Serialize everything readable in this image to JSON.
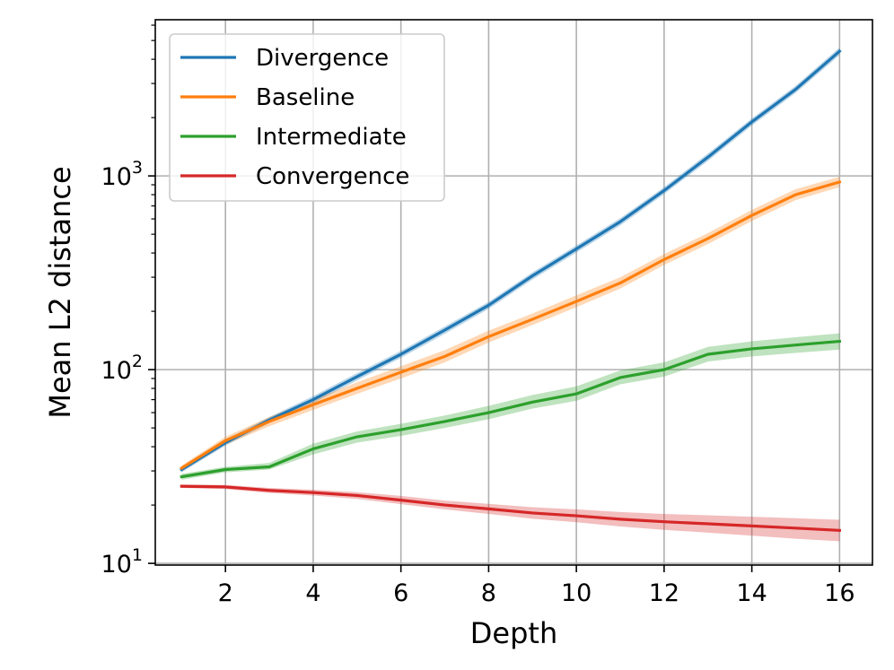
{
  "chart_data": {
    "type": "line",
    "title": "",
    "xlabel": "Depth",
    "ylabel": "Mean L2 distance",
    "yscale": "log",
    "xlim": [
      0.4,
      16.75
    ],
    "ylim": [
      9.8,
      6400
    ],
    "x": [
      1,
      2,
      3,
      4,
      5,
      6,
      7,
      8,
      9,
      10,
      11,
      12,
      13,
      14,
      15,
      16
    ],
    "xticks": [
      2,
      4,
      6,
      8,
      10,
      12,
      14,
      16
    ],
    "xtick_labels": [
      "2",
      "4",
      "6",
      "8",
      "10",
      "12",
      "14",
      "16"
    ],
    "yticks": [
      {
        "value": 10,
        "base": "10",
        "exp": "1"
      },
      {
        "value": 100,
        "base": "10",
        "exp": "2"
      },
      {
        "value": 1000,
        "base": "10",
        "exp": "3"
      }
    ],
    "grid": true,
    "legend_position": "top-left",
    "series": [
      {
        "name": "Divergence",
        "color": "#1f77b4",
        "values": [
          30.5,
          42,
          55,
          70,
          92,
          120,
          160,
          215,
          305,
          420,
          580,
          840,
          1250,
          1900,
          2800,
          4400
        ],
        "band": [
          [
            29.5,
            31.5
          ],
          [
            40.5,
            43.5
          ],
          [
            53,
            57
          ],
          [
            67,
            73
          ],
          [
            88,
            96
          ],
          [
            115,
            125
          ],
          [
            153,
            167
          ],
          [
            206,
            224
          ],
          [
            292,
            318
          ],
          [
            402,
            438
          ],
          [
            555,
            605
          ],
          [
            805,
            875
          ],
          [
            1195,
            1305
          ],
          [
            1820,
            1980
          ],
          [
            2680,
            2920
          ],
          [
            4200,
            4600
          ]
        ]
      },
      {
        "name": "Baseline",
        "color": "#ff7f0e",
        "values": [
          31,
          43,
          54,
          66,
          80,
          97,
          117,
          148,
          182,
          225,
          280,
          370,
          475,
          625,
          800,
          930
        ],
        "band": [
          [
            30,
            32
          ],
          [
            41,
            45
          ],
          [
            51,
            57
          ],
          [
            62,
            70
          ],
          [
            75,
            86
          ],
          [
            90,
            104
          ],
          [
            109,
            126
          ],
          [
            138,
            159
          ],
          [
            170,
            195
          ],
          [
            210,
            242
          ],
          [
            262,
            300
          ],
          [
            347,
            395
          ],
          [
            445,
            507
          ],
          [
            585,
            668
          ],
          [
            750,
            855
          ],
          [
            875,
            990
          ]
        ]
      },
      {
        "name": "Intermediate",
        "color": "#2ca02c",
        "values": [
          28,
          30.5,
          31.5,
          39,
          45,
          49,
          54,
          60,
          68,
          75,
          91,
          100,
          120,
          128,
          134,
          140
        ],
        "band": [
          [
            27,
            29
          ],
          [
            29.5,
            31.5
          ],
          [
            30.5,
            33
          ],
          [
            36.5,
            41.5
          ],
          [
            42,
            48
          ],
          [
            45.5,
            52.5
          ],
          [
            50,
            58
          ],
          [
            55.5,
            65
          ],
          [
            63,
            74
          ],
          [
            69,
            82
          ],
          [
            84,
            99
          ],
          [
            92,
            109
          ],
          [
            110,
            131
          ],
          [
            117,
            140
          ],
          [
            122,
            147
          ],
          [
            127,
            154
          ]
        ]
      },
      {
        "name": "Convergence",
        "color": "#d62728",
        "values": [
          25,
          24.8,
          23.8,
          23.2,
          22.4,
          21.2,
          20,
          19.1,
          18.2,
          17.6,
          16.9,
          16.4,
          16,
          15.6,
          15.2,
          14.8
        ],
        "band": [
          [
            24.5,
            25.5
          ],
          [
            24.2,
            25.4
          ],
          [
            23.1,
            24.5
          ],
          [
            22.4,
            24
          ],
          [
            21.5,
            23.3
          ],
          [
            20.2,
            22.3
          ],
          [
            19,
            21.1
          ],
          [
            18,
            20.3
          ],
          [
            17,
            19.5
          ],
          [
            16.3,
            19
          ],
          [
            15.5,
            18.4
          ],
          [
            14.9,
            18
          ],
          [
            14.4,
            17.7
          ],
          [
            13.9,
            17.4
          ],
          [
            13.4,
            17.1
          ],
          [
            13,
            16.8
          ]
        ]
      }
    ]
  }
}
